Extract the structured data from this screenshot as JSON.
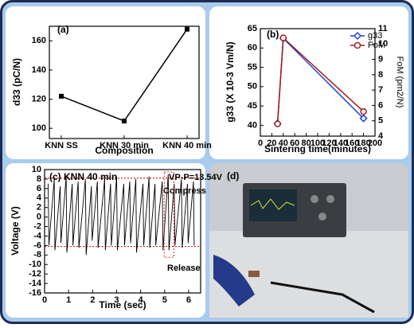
{
  "chart_data": [
    {
      "type": "line",
      "title": "(a)",
      "x_label": "Composition",
      "y_label": "d33 (pC/N)",
      "categories": [
        "KNN SS",
        "KNN 30 min",
        "KNN 40 min"
      ],
      "series": [
        {
          "color": "#000000",
          "marker": "square",
          "values": [
            122,
            105,
            168
          ]
        }
      ],
      "ylim": [
        93,
        170
      ],
      "yticks": [
        100,
        120,
        140,
        160
      ]
    },
    {
      "type": "line",
      "title": "(b)",
      "x_label": "Sintering time(minutes)",
      "y_label": "g33 (X 10-3 Vm/N)",
      "y2_label": "FoM (pm2/N)",
      "x": [
        30,
        40,
        180
      ],
      "xlim": [
        0,
        200
      ],
      "xticks": [
        0,
        20,
        40,
        60,
        80,
        100,
        120,
        140,
        160,
        180,
        200
      ],
      "ylim": [
        37.2,
        65
      ],
      "yticks": [
        40,
        45,
        50,
        55,
        60,
        65
      ],
      "y2lim": [
        4,
        11
      ],
      "y2ticks": [
        4,
        5,
        6,
        7,
        8,
        9,
        10,
        11
      ],
      "legend": "upper right",
      "series": [
        {
          "name": "g33",
          "color": "#1f3fe0",
          "marker": "diamond",
          "values": [
            40.5,
            62.5,
            41.8
          ]
        },
        {
          "name": "FoM",
          "color": "#a01c1c",
          "marker": "circle",
          "axis": "y2",
          "values": [
            4.8,
            10.4,
            5.6
          ]
        }
      ]
    },
    {
      "type": "line",
      "title": "(c) KNN 40 min",
      "annotations": [
        "VP-P=13.54V",
        "Compress",
        "Release"
      ],
      "x_label": "Time (sec)",
      "y_label": "Voltage (V)",
      "x": [
        0.15,
        0.18,
        0.4,
        0.43,
        0.65,
        0.68,
        0.9,
        0.93,
        1.15,
        1.18,
        1.4,
        1.43,
        1.7,
        1.73,
        1.95,
        1.98,
        2.2,
        2.23,
        2.5,
        2.53,
        2.75,
        2.78,
        3.0,
        3.03,
        3.3,
        3.33,
        3.55,
        3.58,
        3.8,
        3.83,
        4.1,
        4.13,
        4.35,
        4.38,
        4.6,
        4.63,
        4.9,
        4.93,
        5.15,
        5.18,
        5.4,
        5.43,
        5.7,
        5.73,
        5.95,
        5.98,
        6.2,
        6.23
      ],
      "series": [
        {
          "color": "#000000",
          "values": [
            7,
            -6,
            8,
            -7,
            6.5,
            -5.5,
            8.5,
            -7.5,
            7,
            -6,
            7.5,
            -6.5,
            8,
            -8,
            6.5,
            -5,
            7.5,
            -6.5,
            8,
            -7,
            7,
            -6,
            8.5,
            -7,
            7,
            -6,
            7.5,
            -5.5,
            8,
            -7.5,
            7,
            -6,
            8.5,
            -6.5,
            7,
            -6,
            7.5,
            -7,
            9,
            -7,
            7,
            -6,
            8,
            -6.5,
            7,
            -5.5,
            7.5,
            -6
          ]
        }
      ],
      "xlim": [
        0,
        6.5
      ],
      "xticks": [
        0,
        1,
        2,
        3,
        4,
        5,
        6
      ],
      "ylim": [
        -16,
        10
      ],
      "yticks": [
        10,
        8,
        6,
        4,
        2,
        0,
        -2,
        -4,
        -6,
        -8,
        -10,
        -12,
        -14,
        -16
      ],
      "reference_lines": [
        8.2,
        -6.2
      ]
    }
  ],
  "photo": {
    "label": "(d)"
  }
}
